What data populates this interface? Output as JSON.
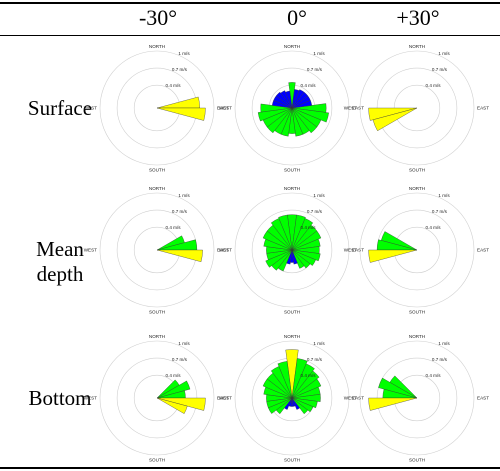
{
  "table": {
    "columns": [
      "-30°",
      "0°",
      "+30°"
    ],
    "rows": [
      "Surface",
      "Mean depth",
      "Bottom"
    ]
  },
  "colors": {
    "yellow": "#ffff00",
    "green": "#00ff00",
    "blue": "#0000ff",
    "ring": "#cfcfcf"
  },
  "chart_data": [
    {
      "type": "polar-bar",
      "row": "Surface",
      "column": "-30°",
      "directions": [
        "NORTH",
        "EAST",
        "SOUTH",
        "WEST"
      ],
      "ring_labels": [
        "0.4 m/s",
        "0.7 m/s",
        "1 m/s"
      ],
      "rmax": 1,
      "sectors": [
        {
          "angle": 82.5,
          "width": 15,
          "value": 0.75,
          "color": "yellow"
        },
        {
          "angle": 97.5,
          "width": 15,
          "value": 0.85,
          "color": "yellow"
        }
      ]
    },
    {
      "type": "polar-bar",
      "row": "Surface",
      "column": "0°",
      "directions": [
        "NORTH",
        "EAST",
        "SOUTH",
        "WEST"
      ],
      "ring_labels": [
        "0.4 m/s",
        "0.7 m/s",
        "1 m/s"
      ],
      "rmax": 1,
      "sectors": [
        {
          "angle": 0,
          "width": 15,
          "value": 0.45,
          "color": "green"
        },
        {
          "angle": 90,
          "width": 15,
          "value": 0.6,
          "color": "green"
        },
        {
          "angle": 105,
          "width": 15,
          "value": 0.65,
          "color": "green"
        },
        {
          "angle": 120,
          "width": 15,
          "value": 0.55,
          "color": "green"
        },
        {
          "angle": 135,
          "width": 15,
          "value": 0.55,
          "color": "green"
        },
        {
          "angle": 150,
          "width": 15,
          "value": 0.5,
          "color": "green"
        },
        {
          "angle": 165,
          "width": 15,
          "value": 0.5,
          "color": "green"
        },
        {
          "angle": 180,
          "width": 15,
          "value": 0.45,
          "color": "green"
        },
        {
          "angle": 195,
          "width": 15,
          "value": 0.5,
          "color": "green"
        },
        {
          "angle": 210,
          "width": 15,
          "value": 0.5,
          "color": "green"
        },
        {
          "angle": 225,
          "width": 15,
          "value": 0.55,
          "color": "green"
        },
        {
          "angle": 240,
          "width": 15,
          "value": 0.55,
          "color": "green"
        },
        {
          "angle": 255,
          "width": 15,
          "value": 0.6,
          "color": "green"
        },
        {
          "angle": 270,
          "width": 15,
          "value": 0.55,
          "color": "green"
        },
        {
          "angle": 285,
          "width": 15,
          "value": 0.35,
          "color": "blue"
        },
        {
          "angle": 300,
          "width": 15,
          "value": 0.35,
          "color": "blue"
        },
        {
          "angle": 315,
          "width": 15,
          "value": 0.35,
          "color": "blue"
        },
        {
          "angle": 330,
          "width": 15,
          "value": 0.33,
          "color": "blue"
        },
        {
          "angle": 345,
          "width": 15,
          "value": 0.3,
          "color": "blue"
        },
        {
          "angle": 15,
          "width": 15,
          "value": 0.33,
          "color": "blue"
        },
        {
          "angle": 30,
          "width": 15,
          "value": 0.35,
          "color": "blue"
        },
        {
          "angle": 45,
          "width": 15,
          "value": 0.35,
          "color": "blue"
        },
        {
          "angle": 60,
          "width": 15,
          "value": 0.35,
          "color": "blue"
        },
        {
          "angle": 75,
          "width": 15,
          "value": 0.35,
          "color": "blue"
        }
      ]
    },
    {
      "type": "polar-bar",
      "row": "Surface",
      "column": "+30°",
      "directions": [
        "NORTH",
        "EAST",
        "SOUTH",
        "WEST"
      ],
      "ring_labels": [
        "0.4 m/s",
        "0.7 m/s",
        "1 m/s"
      ],
      "rmax": 1,
      "sectors": [
        {
          "angle": 262.5,
          "width": 15,
          "value": 0.85,
          "color": "yellow"
        },
        {
          "angle": 247.5,
          "width": 15,
          "value": 0.8,
          "color": "yellow"
        }
      ]
    },
    {
      "type": "polar-bar",
      "row": "Mean depth",
      "column": "-30°",
      "directions": [
        "NORTH",
        "EAST",
        "SOUTH",
        "WEST"
      ],
      "ring_labels": [
        "0.4 m/s",
        "0.7 m/s",
        "1 m/s"
      ],
      "rmax": 1,
      "sectors": [
        {
          "angle": 67.5,
          "width": 15,
          "value": 0.5,
          "color": "green"
        },
        {
          "angle": 82.5,
          "width": 15,
          "value": 0.7,
          "color": "green"
        },
        {
          "angle": 97.5,
          "width": 15,
          "value": 0.8,
          "color": "yellow"
        }
      ]
    },
    {
      "type": "polar-bar",
      "row": "Mean depth",
      "column": "0°",
      "directions": [
        "NORTH",
        "EAST",
        "SOUTH",
        "WEST"
      ],
      "ring_labels": [
        "0.4 m/s",
        "0.7 m/s",
        "1 m/s"
      ],
      "rmax": 1,
      "sectors": [
        {
          "angle": 0,
          "width": 15,
          "value": 0.62,
          "color": "green"
        },
        {
          "angle": 15,
          "width": 15,
          "value": 0.62,
          "color": "green"
        },
        {
          "angle": 30,
          "width": 15,
          "value": 0.6,
          "color": "green"
        },
        {
          "angle": 45,
          "width": 15,
          "value": 0.55,
          "color": "green"
        },
        {
          "angle": 60,
          "width": 15,
          "value": 0.55,
          "color": "green"
        },
        {
          "angle": 75,
          "width": 15,
          "value": 0.5,
          "color": "green"
        },
        {
          "angle": 90,
          "width": 15,
          "value": 0.48,
          "color": "green"
        },
        {
          "angle": 105,
          "width": 15,
          "value": 0.5,
          "color": "green"
        },
        {
          "angle": 120,
          "width": 15,
          "value": 0.45,
          "color": "green"
        },
        {
          "angle": 135,
          "width": 15,
          "value": 0.4,
          "color": "green"
        },
        {
          "angle": 150,
          "width": 15,
          "value": 0.35,
          "color": "green"
        },
        {
          "angle": 165,
          "width": 15,
          "value": 0.25,
          "color": "blue"
        },
        {
          "angle": 180,
          "width": 15,
          "value": 0.22,
          "color": "blue"
        },
        {
          "angle": 195,
          "width": 15,
          "value": 0.25,
          "color": "blue"
        },
        {
          "angle": 210,
          "width": 15,
          "value": 0.4,
          "color": "green"
        },
        {
          "angle": 225,
          "width": 15,
          "value": 0.45,
          "color": "green"
        },
        {
          "angle": 240,
          "width": 15,
          "value": 0.5,
          "color": "green"
        },
        {
          "angle": 255,
          "width": 15,
          "value": 0.45,
          "color": "green"
        },
        {
          "angle": 270,
          "width": 15,
          "value": 0.45,
          "color": "green"
        },
        {
          "angle": 285,
          "width": 15,
          "value": 0.5,
          "color": "green"
        },
        {
          "angle": 300,
          "width": 15,
          "value": 0.55,
          "color": "green"
        },
        {
          "angle": 315,
          "width": 15,
          "value": 0.55,
          "color": "green"
        },
        {
          "angle": 330,
          "width": 15,
          "value": 0.6,
          "color": "green"
        },
        {
          "angle": 345,
          "width": 15,
          "value": 0.62,
          "color": "green"
        }
      ]
    },
    {
      "type": "polar-bar",
      "row": "Mean depth",
      "column": "+30°",
      "directions": [
        "NORTH",
        "EAST",
        "SOUTH",
        "WEST"
      ],
      "ring_labels": [
        "0.4 m/s",
        "0.7 m/s",
        "1 m/s"
      ],
      "rmax": 1,
      "sectors": [
        {
          "angle": 292.5,
          "width": 15,
          "value": 0.65,
          "color": "green"
        },
        {
          "angle": 277.5,
          "width": 15,
          "value": 0.7,
          "color": "green"
        },
        {
          "angle": 262.5,
          "width": 15,
          "value": 0.85,
          "color": "yellow"
        }
      ]
    },
    {
      "type": "polar-bar",
      "row": "Bottom",
      "column": "-30°",
      "directions": [
        "NORTH",
        "EAST",
        "SOUTH",
        "WEST"
      ],
      "ring_labels": [
        "0.4 m/s",
        "0.7 m/s",
        "1 m/s"
      ],
      "rmax": 1,
      "sectors": [
        {
          "angle": 52.5,
          "width": 15,
          "value": 0.45,
          "color": "green"
        },
        {
          "angle": 67.5,
          "width": 15,
          "value": 0.6,
          "color": "green"
        },
        {
          "angle": 82.5,
          "width": 15,
          "value": 0.5,
          "color": "green"
        },
        {
          "angle": 97.5,
          "width": 15,
          "value": 0.85,
          "color": "yellow"
        },
        {
          "angle": 112.5,
          "width": 15,
          "value": 0.55,
          "color": "yellow"
        }
      ]
    },
    {
      "type": "polar-bar",
      "row": "Bottom",
      "column": "0°",
      "directions": [
        "NORTH",
        "EAST",
        "SOUTH",
        "WEST"
      ],
      "ring_labels": [
        "0.4 m/s",
        "0.7 m/s",
        "1 m/s"
      ],
      "rmax": 1,
      "sectors": [
        {
          "angle": 0,
          "width": 15,
          "value": 0.85,
          "color": "yellow"
        },
        {
          "angle": 15,
          "width": 15,
          "value": 0.7,
          "color": "green"
        },
        {
          "angle": 30,
          "width": 15,
          "value": 0.65,
          "color": "green"
        },
        {
          "angle": 45,
          "width": 15,
          "value": 0.6,
          "color": "green"
        },
        {
          "angle": 60,
          "width": 15,
          "value": 0.55,
          "color": "green"
        },
        {
          "angle": 75,
          "width": 15,
          "value": 0.5,
          "color": "green"
        },
        {
          "angle": 90,
          "width": 15,
          "value": 0.5,
          "color": "green"
        },
        {
          "angle": 105,
          "width": 15,
          "value": 0.45,
          "color": "green"
        },
        {
          "angle": 120,
          "width": 15,
          "value": 0.4,
          "color": "green"
        },
        {
          "angle": 135,
          "width": 15,
          "value": 0.35,
          "color": "green"
        },
        {
          "angle": 150,
          "width": 15,
          "value": 0.22,
          "color": "blue"
        },
        {
          "angle": 165,
          "width": 15,
          "value": 0.15,
          "color": "blue"
        },
        {
          "angle": 180,
          "width": 15,
          "value": 0.15,
          "color": "blue"
        },
        {
          "angle": 195,
          "width": 15,
          "value": 0.15,
          "color": "blue"
        },
        {
          "angle": 210,
          "width": 15,
          "value": 0.22,
          "color": "blue"
        },
        {
          "angle": 225,
          "width": 15,
          "value": 0.35,
          "color": "green"
        },
        {
          "angle": 240,
          "width": 15,
          "value": 0.45,
          "color": "green"
        },
        {
          "angle": 255,
          "width": 15,
          "value": 0.45,
          "color": "green"
        },
        {
          "angle": 270,
          "width": 15,
          "value": 0.45,
          "color": "green"
        },
        {
          "angle": 285,
          "width": 15,
          "value": 0.5,
          "color": "green"
        },
        {
          "angle": 300,
          "width": 15,
          "value": 0.55,
          "color": "green"
        },
        {
          "angle": 315,
          "width": 15,
          "value": 0.55,
          "color": "green"
        },
        {
          "angle": 330,
          "width": 15,
          "value": 0.6,
          "color": "green"
        },
        {
          "angle": 345,
          "width": 15,
          "value": 0.65,
          "color": "green"
        }
      ]
    },
    {
      "type": "polar-bar",
      "row": "Bottom",
      "column": "+30°",
      "directions": [
        "NORTH",
        "EAST",
        "SOUTH",
        "WEST"
      ],
      "ring_labels": [
        "0.4 m/s",
        "0.7 m/s",
        "1 m/s"
      ],
      "rmax": 1,
      "sectors": [
        {
          "angle": 307.5,
          "width": 15,
          "value": 0.55,
          "color": "green"
        },
        {
          "angle": 292.5,
          "width": 15,
          "value": 0.7,
          "color": "green"
        },
        {
          "angle": 277.5,
          "width": 15,
          "value": 0.6,
          "color": "green"
        },
        {
          "angle": 262.5,
          "width": 15,
          "value": 0.85,
          "color": "yellow"
        }
      ]
    }
  ]
}
